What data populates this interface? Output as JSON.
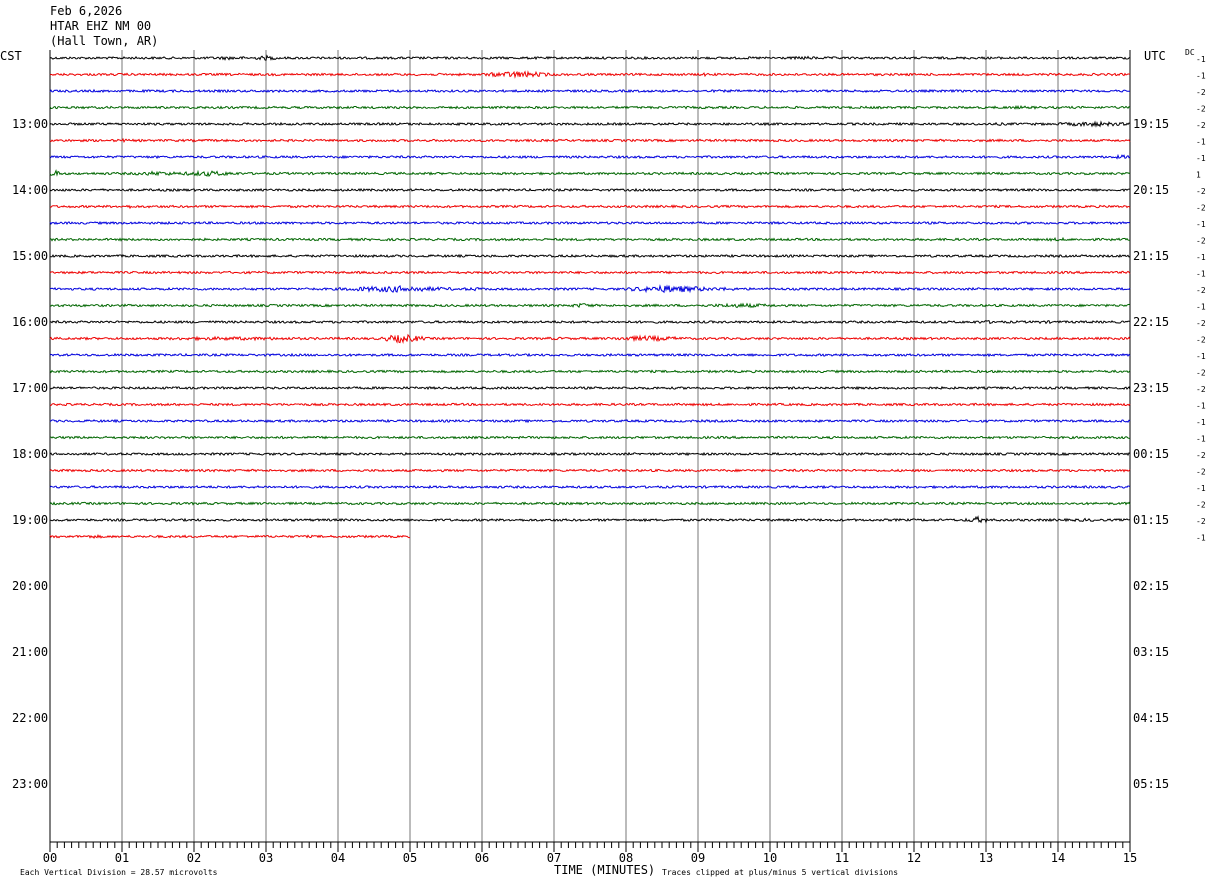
{
  "header": {
    "date": "Feb 6,2026",
    "station": "HTAR EHZ NM 00",
    "location": "(Hall Town, AR)"
  },
  "left_tz": "CST",
  "right_tz": "UTC",
  "dc_label": "DC",
  "footer": {
    "left_note": "Each Vertical Division =   28.57 microvolts",
    "clip_note": "Traces clipped at plus/minus 5 vertical divisions",
    "xaxis_title": "TIME (MINUTES)"
  },
  "chart_data": {
    "type": "line",
    "description_type": "helicorder",
    "xlabel": "TIME (MINUTES)",
    "xlim": [
      0,
      15
    ],
    "x_ticks": [
      "00",
      "01",
      "02",
      "03",
      "04",
      "05",
      "06",
      "07",
      "08",
      "09",
      "10",
      "11",
      "12",
      "13",
      "14",
      "15"
    ],
    "minutes_per_line": 15,
    "hour_labels_left": [
      "13:00",
      "14:00",
      "15:00",
      "16:00",
      "17:00",
      "18:00",
      "19:00",
      "20:00",
      "21:00",
      "22:00",
      "23:00"
    ],
    "hour_labels_right": [
      "19:15",
      "20:15",
      "21:15",
      "22:15",
      "23:15",
      "00:15",
      "01:15",
      "02:15",
      "03:15",
      "04:15",
      "05:15"
    ],
    "trace_colors": [
      "#000000",
      "#ee0000",
      "#0000dd",
      "#006600"
    ],
    "dc_offsets": [
      "-1",
      "-1",
      "-2",
      "-2",
      "-2",
      "-1",
      "-1",
      "1",
      "-2",
      "-2",
      "-1",
      "-2",
      "-1",
      "-1",
      "-2",
      "-1",
      "-2",
      "-2",
      "-1",
      "-2",
      "-2",
      "-1",
      "-1",
      "-1",
      "-2",
      "-2",
      "-1",
      "-2",
      "-2",
      "-1"
    ],
    "traces": [
      {
        "bursts": [
          [
            2.5,
            0.5,
            1.6
          ],
          [
            3.0,
            0.2,
            2.2
          ],
          [
            10.5,
            0.4,
            1.5
          ]
        ]
      },
      {
        "bursts": [
          [
            6.5,
            0.5,
            3.0
          ],
          [
            9.1,
            0.1,
            1.5
          ]
        ]
      },
      {
        "bursts": []
      },
      {
        "bursts": [
          [
            13.5,
            0.8,
            1.3
          ]
        ]
      },
      {
        "bursts": [
          [
            14.5,
            0.6,
            2.2
          ],
          [
            13.2,
            0.3,
            1.3
          ]
        ]
      },
      {
        "bursts": [
          [
            1.0,
            0.1,
            1.8
          ]
        ]
      },
      {
        "bursts": [
          [
            14.9,
            0.2,
            1.8
          ]
        ]
      },
      {
        "bursts": [
          [
            0.05,
            0.15,
            3.0
          ],
          [
            1.5,
            0.5,
            2.0
          ],
          [
            2.2,
            0.5,
            2.4
          ]
        ]
      },
      {
        "bursts": [
          [
            0.1,
            0.2,
            1.2
          ]
        ]
      },
      {
        "bursts": [
          [
            1.1,
            0.1,
            1.6
          ]
        ]
      },
      {
        "bursts": []
      },
      {
        "bursts": [
          [
            14.0,
            0.3,
            1.5
          ]
        ]
      },
      {
        "bursts": [
          [
            3.0,
            0.1,
            1.3
          ]
        ]
      },
      {
        "bursts": []
      },
      {
        "bursts": [
          [
            4.8,
            0.8,
            3.0
          ],
          [
            5.9,
            0.3,
            1.6
          ],
          [
            8.6,
            0.6,
            3.4
          ],
          [
            9.3,
            0.5,
            1.6
          ]
        ]
      },
      {
        "bursts": [
          [
            7.4,
            0.2,
            2.2
          ],
          [
            9.6,
            0.6,
            2.0
          ]
        ]
      },
      {
        "bursts": [
          [
            13.0,
            0.4,
            1.5
          ],
          [
            13.8,
            0.4,
            1.4
          ]
        ]
      },
      {
        "bursts": [
          [
            2.5,
            1.8,
            1.6
          ],
          [
            4.9,
            0.3,
            4.0
          ],
          [
            8.3,
            0.6,
            2.4
          ],
          [
            7.0,
            1.0,
            1.2
          ]
        ]
      },
      {
        "bursts": []
      },
      {
        "bursts": []
      },
      {
        "bursts": [
          [
            8.4,
            0.1,
            1.3
          ]
        ]
      },
      {
        "bursts": []
      },
      {
        "bursts": []
      },
      {
        "bursts": []
      },
      {
        "bursts": []
      },
      {
        "bursts": []
      },
      {
        "bursts": []
      },
      {
        "bursts": []
      },
      {
        "bursts": [
          [
            12.9,
            0.2,
            3.0
          ],
          [
            14.4,
            0.5,
            1.4
          ]
        ]
      },
      {
        "bursts": [
          [
            0.6,
            0.3,
            1.5
          ]
        ],
        "end_minute": 5
      }
    ]
  }
}
